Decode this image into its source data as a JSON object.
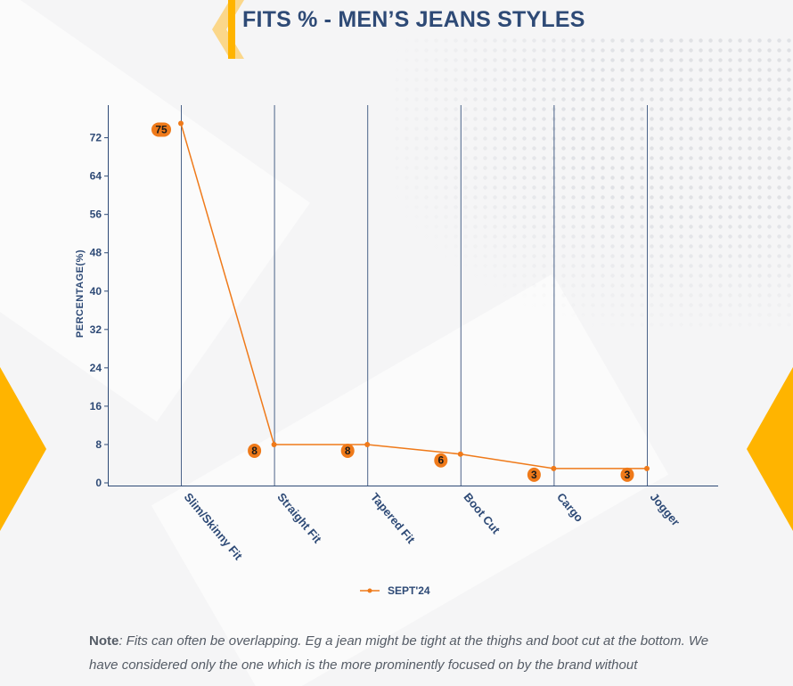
{
  "page": {
    "title": "FITS % - MEN’S JEANS STYLES"
  },
  "colors": {
    "series": "#ef7a1a",
    "axis": "#2e4a76",
    "accent": "#ffb400",
    "label_bg": "#ef7a1a"
  },
  "chart_data": {
    "type": "line",
    "categories": [
      "Slim/Skinny Fit",
      "Straight Fit",
      "Tapered Fit",
      "Boot Cut",
      "Cargo",
      "Jogger"
    ],
    "series": [
      {
        "name": "SEPT'24",
        "values": [
          75,
          8,
          8,
          6,
          3,
          3
        ]
      }
    ],
    "ylabel": "PERCENTAGE(%)",
    "xlabel": "",
    "ylim": [
      0,
      78
    ],
    "yticks": [
      0,
      8,
      16,
      24,
      32,
      40,
      48,
      56,
      64,
      72
    ],
    "grid": "vertical lines at categories",
    "legend": "bottom-center",
    "data_labels": true
  },
  "note": {
    "label": "Note",
    "text": ": Fits can often be overlapping. Eg a jean might be tight at the thighs and boot cut at the bottom. We have considered only the one which is the more prominently focused on by the brand without"
  }
}
